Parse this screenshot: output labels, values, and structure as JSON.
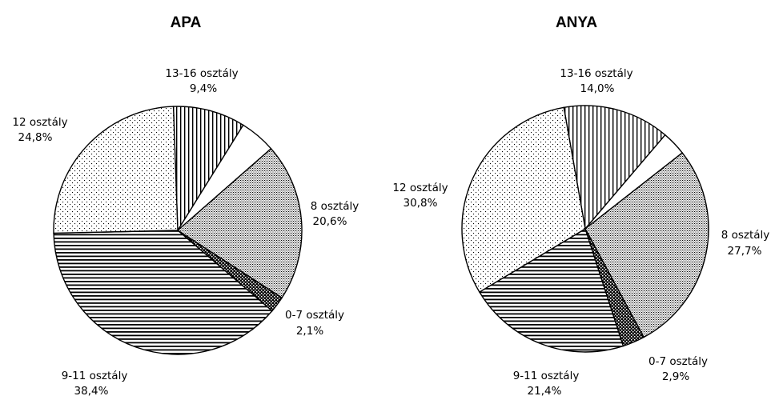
{
  "chart_data": [
    {
      "type": "pie",
      "title": "APA",
      "slices": [
        {
          "label": "13-16 osztály",
          "value": 9.4,
          "text": "9,4%",
          "pattern": "vertical"
        },
        {
          "label": "",
          "value": 4.7,
          "text": "",
          "pattern": "blank"
        },
        {
          "label": "8 osztály",
          "value": 20.6,
          "text": "20,6%",
          "pattern": "gray"
        },
        {
          "label": "0-7 osztály",
          "value": 2.1,
          "text": "2,1%",
          "pattern": "check"
        },
        {
          "label": "9-11 osztály",
          "value": 38.4,
          "text": "38,4%",
          "pattern": "horizontal"
        },
        {
          "label": "12 osztály",
          "value": 24.8,
          "text": "24,8%",
          "pattern": "dots"
        }
      ]
    },
    {
      "type": "pie",
      "title": "ANYA",
      "slices": [
        {
          "label": "13-16 osztály",
          "value": 14.0,
          "text": "14,0%",
          "pattern": "vertical"
        },
        {
          "label": "",
          "value": 3.2,
          "text": "",
          "pattern": "blank"
        },
        {
          "label": "8 osztály",
          "value": 27.7,
          "text": "27,7%",
          "pattern": "gray"
        },
        {
          "label": "0-7 osztály",
          "value": 2.9,
          "text": "2,9%",
          "pattern": "check"
        },
        {
          "label": "9-11 osztály",
          "value": 21.4,
          "text": "21,4%",
          "pattern": "horizontal"
        },
        {
          "label": "12 osztály",
          "value": 30.8,
          "text": "30,8%",
          "pattern": "dots"
        }
      ]
    }
  ]
}
